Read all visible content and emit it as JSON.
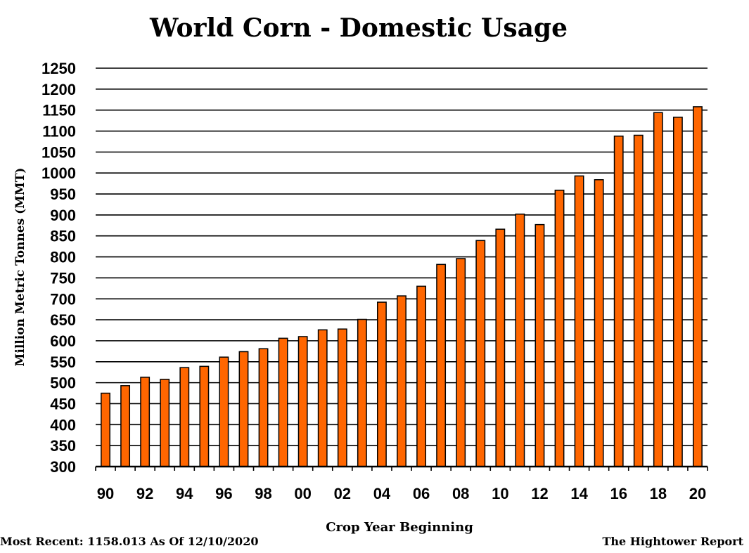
{
  "chart_data": {
    "type": "bar",
    "title": "World Corn - Domestic Usage",
    "xlabel": "Crop Year Beginning",
    "ylabel": "Million Metric Tonnes (MMT)",
    "ylim": [
      300,
      1250
    ],
    "ytick_step": 50,
    "grid": true,
    "categories": [
      "90",
      "91",
      "92",
      "93",
      "94",
      "95",
      "96",
      "97",
      "98",
      "99",
      "00",
      "01",
      "02",
      "03",
      "04",
      "05",
      "06",
      "07",
      "08",
      "09",
      "10",
      "11",
      "12",
      "13",
      "14",
      "15",
      "16",
      "17",
      "18",
      "19",
      "20"
    ],
    "xtick_labels": [
      "90",
      "92",
      "94",
      "96",
      "98",
      "00",
      "02",
      "04",
      "06",
      "08",
      "10",
      "12",
      "14",
      "16",
      "18",
      "20"
    ],
    "values": [
      475,
      493,
      513,
      508,
      536,
      539,
      561,
      574,
      581,
      606,
      610,
      626,
      628,
      651,
      692,
      707,
      730,
      782,
      796,
      839,
      866,
      902,
      877,
      959,
      993,
      984,
      1088,
      1090,
      1144,
      1133,
      1158
    ],
    "bar_color": "#FF6600",
    "bar_stroke": "#000000"
  },
  "footer": {
    "most_recent": "Most Recent: 1158.013 As Of 12/10/2020",
    "source": "The Hightower Report"
  }
}
